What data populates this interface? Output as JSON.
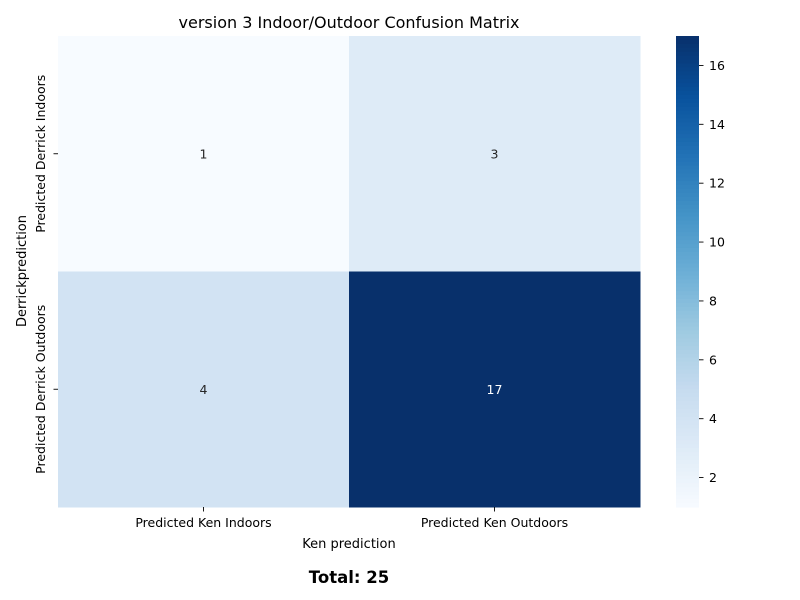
{
  "chart_data": {
    "type": "heatmap",
    "title": "version 3 Indoor/Outdoor Confusion Matrix",
    "xlabel": "Ken prediction",
    "ylabel": "Derrickprediction",
    "x_categories": [
      "Predicted Ken Indoors",
      "Predicted Ken Outdoors"
    ],
    "y_categories": [
      "Predicted Derrick Indoors",
      "Predicted Derrick Outdoors"
    ],
    "values": [
      [
        1,
        3
      ],
      [
        4,
        17
      ]
    ],
    "colorbar": {
      "range": [
        1,
        17
      ],
      "ticks": [
        2,
        4,
        6,
        8,
        10,
        12,
        14,
        16
      ],
      "colormap": "Blues",
      "low_color": "#f7fbff",
      "high_color": "#08306b"
    },
    "footer": "Total: 25"
  }
}
